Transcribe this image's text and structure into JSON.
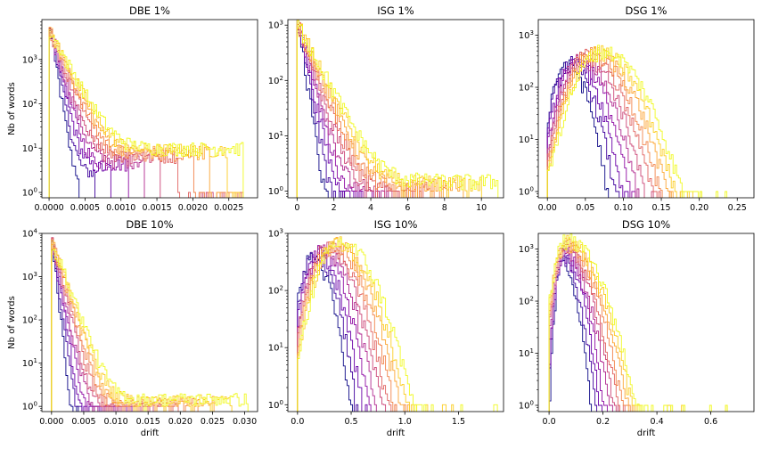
{
  "chart_data": {
    "type": "histogram",
    "layout": "2x3 grid",
    "yscale": "log",
    "colormap": [
      "#0d0887",
      "#41049d",
      "#6a00a8",
      "#8f0da4",
      "#b12a90",
      "#cc4778",
      "#e16462",
      "#f2844b",
      "#fca636",
      "#fcce25",
      "#f0f921"
    ],
    "n_series_per_panel": 11,
    "ylabel": "Nb of words",
    "xlabel": "drift",
    "panels": [
      {
        "title": "DBE 1%",
        "xlim": [
          -0.0001,
          0.0029
        ],
        "xticks": [
          0,
          0.0005,
          0.001,
          0.0015,
          0.002,
          0.0025
        ],
        "xtick_labels": [
          "0.0000",
          "0.0005",
          "0.0010",
          "0.0015",
          "0.0020",
          "0.0025"
        ],
        "ylim_exp": [
          -0.12,
          3.9
        ],
        "ytick_exp": [
          0,
          1,
          2,
          3
        ],
        "ytick_labels": [
          "10^0",
          "10^1",
          "10^2",
          "10^3"
        ],
        "ylabel": "Nb of words",
        "xlabel": "",
        "shape": "decay",
        "peak": 4000,
        "peak_x": 3e-05,
        "scale": 0.00012,
        "tail": 10,
        "xmax": 0.0027
      },
      {
        "title": "ISG 1%",
        "xlim": [
          -0.5,
          11.2
        ],
        "xticks": [
          0,
          2,
          4,
          6,
          8,
          10
        ],
        "xtick_labels": [
          "0",
          "2",
          "4",
          "6",
          "8",
          "10"
        ],
        "ylim_exp": [
          -0.12,
          3.1
        ],
        "ytick_exp": [
          0,
          1,
          2,
          3
        ],
        "ytick_labels": [
          "10^0",
          "10^1",
          "10^2",
          "10^3"
        ],
        "ylabel": "",
        "xlabel": "",
        "shape": "decay",
        "peak": 1000,
        "peak_x": 0.1,
        "scale": 0.55,
        "tail": 1.5,
        "xmax": 10.9
      },
      {
        "title": "DSG 1%",
        "xlim": [
          -0.012,
          0.272
        ],
        "xticks": [
          0,
          0.05,
          0.1,
          0.15,
          0.2,
          0.25
        ],
        "xtick_labels": [
          "0.00",
          "0.05",
          "0.10",
          "0.15",
          "0.20",
          "0.25"
        ],
        "ylim_exp": [
          -0.12,
          3.3
        ],
        "ytick_exp": [
          0,
          1,
          2,
          3
        ],
        "ytick_labels": [
          "10^0",
          "10^1",
          "10^2",
          "10^3"
        ],
        "ylabel": "",
        "xlabel": "",
        "shape": "bell",
        "peak": 500,
        "center": 0.072,
        "width": 0.024,
        "xmax": 0.26
      },
      {
        "title": "DBE 10%",
        "xlim": [
          -0.0015,
          0.032
        ],
        "xticks": [
          0,
          0.005,
          0.01,
          0.015,
          0.02,
          0.025,
          0.03
        ],
        "xtick_labels": [
          "0.000",
          "0.005",
          "0.010",
          "0.015",
          "0.020",
          "0.025",
          "0.030"
        ],
        "ylim_exp": [
          -0.12,
          4.0
        ],
        "ytick_exp": [
          0,
          1,
          2,
          3,
          4
        ],
        "ytick_labels": [
          "10^0",
          "10^1",
          "10^2",
          "10^3",
          "10^4"
        ],
        "ylabel": "Nb of words",
        "xlabel": "drift",
        "shape": "decay",
        "peak": 6000,
        "peak_x": 0.0002,
        "scale": 0.0009,
        "tail": 1.5,
        "xmax": 0.0305
      },
      {
        "title": "ISG 10%",
        "xlim": [
          -0.09,
          1.92
        ],
        "xticks": [
          0,
          0.5,
          1,
          1.5
        ],
        "xtick_labels": [
          "0.0",
          "0.5",
          "1.0",
          "1.5"
        ],
        "ylim_exp": [
          -0.12,
          3.0
        ],
        "ytick_exp": [
          0,
          1,
          2,
          3
        ],
        "ytick_labels": [
          "10^0",
          "10^1",
          "10^2",
          "10^3"
        ],
        "ylabel": "",
        "xlabel": "drift",
        "shape": "bell",
        "peak": 700,
        "center": 0.4,
        "width": 0.15,
        "xmax": 1.88
      },
      {
        "title": "DSG 10%",
        "xlim": [
          -0.04,
          0.76
        ],
        "xticks": [
          0,
          0.2,
          0.4,
          0.6
        ],
        "xtick_labels": [
          "0.0",
          "0.2",
          "0.4",
          "0.6"
        ],
        "ylim_exp": [
          -0.12,
          3.3
        ],
        "ytick_exp": [
          0,
          1,
          2,
          3
        ],
        "ytick_labels": [
          "10^0",
          "10^1",
          "10^2",
          "10^3"
        ],
        "ylabel": "",
        "xlabel": "drift",
        "shape": "skew",
        "peak": 1500,
        "center": 0.06,
        "width": 0.045,
        "xmax": 0.72
      }
    ]
  }
}
